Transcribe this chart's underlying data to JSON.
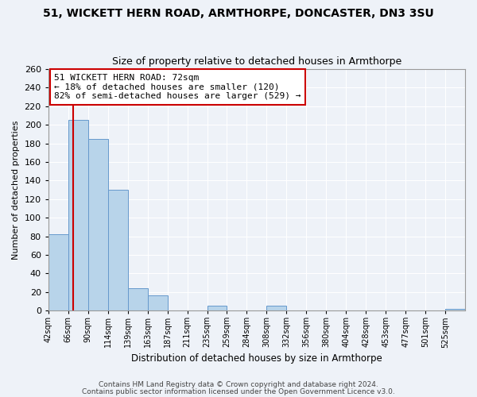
{
  "title1": "51, WICKETT HERN ROAD, ARMTHORPE, DONCASTER, DN3 3SU",
  "title2": "Size of property relative to detached houses in Armthorpe",
  "xlabel": "Distribution of detached houses by size in Armthorpe",
  "ylabel": "Number of detached properties",
  "bin_labels": [
    "42sqm",
    "66sqm",
    "90sqm",
    "114sqm",
    "139sqm",
    "163sqm",
    "187sqm",
    "211sqm",
    "235sqm",
    "259sqm",
    "284sqm",
    "308sqm",
    "332sqm",
    "356sqm",
    "380sqm",
    "404sqm",
    "428sqm",
    "453sqm",
    "477sqm",
    "501sqm",
    "525sqm"
  ],
  "bar_values": [
    82,
    205,
    185,
    130,
    24,
    16,
    0,
    0,
    5,
    0,
    0,
    5,
    0,
    0,
    0,
    0,
    0,
    0,
    0,
    0,
    2
  ],
  "bar_color": "#b8d4ea",
  "bar_edge_color": "#6699cc",
  "vline_color": "#cc0000",
  "annotation_text": "51 WICKETT HERN ROAD: 72sqm\n← 18% of detached houses are smaller (120)\n82% of semi-detached houses are larger (529) →",
  "annotation_bbox_color": "#ffffff",
  "annotation_bbox_edge": "#cc0000",
  "ylim": [
    0,
    260
  ],
  "yticks": [
    0,
    20,
    40,
    60,
    80,
    100,
    120,
    140,
    160,
    180,
    200,
    220,
    240,
    260
  ],
  "footer1": "Contains HM Land Registry data © Crown copyright and database right 2024.",
  "footer2": "Contains public sector information licensed under the Open Government Licence v3.0.",
  "bg_color": "#eef2f8",
  "grid_color": "#ffffff"
}
